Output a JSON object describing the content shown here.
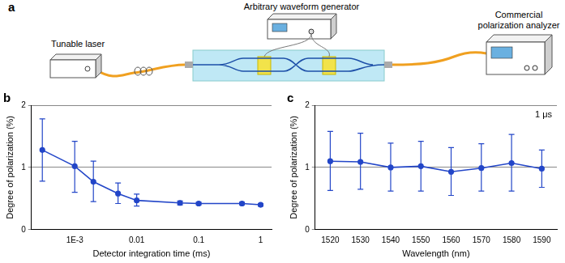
{
  "diagram": {
    "panel_label": "a",
    "nodes": [
      {
        "label": "Tunable laser"
      },
      {
        "label": "Arbitrary waveform generator"
      },
      {
        "label": "Commercial polarization analyzer"
      }
    ]
  },
  "chart_data": [
    {
      "type": "line",
      "panel_label": "b",
      "x_label": "Detector integration time (ms)",
      "y_label": "Degree of polarization (%)",
      "log": "x",
      "grid": true,
      "xlim": [
        0.0002,
        1.5
      ],
      "xticks": [
        {
          "value": 0.001,
          "label": "1E-3"
        },
        0.01,
        0.1,
        1
      ],
      "ylim": [
        0,
        2
      ],
      "yticks": [
        0,
        1,
        2
      ],
      "series": [
        {
          "name": "Degree of polarization",
          "color": "#2346c8",
          "marker": "circle",
          "line_style": "solid",
          "x": [
            0.0003,
            0.001,
            0.002,
            0.005,
            0.01,
            0.05,
            0.1,
            0.5,
            1
          ],
          "values": [
            1.28,
            1.02,
            0.77,
            0.58,
            0.47,
            0.43,
            0.42,
            0.42,
            0.4
          ],
          "error_low": [
            0.78,
            0.6,
            0.45,
            0.42,
            0.38,
            0.4,
            0.4,
            0.4,
            0.38
          ],
          "error_high": [
            1.78,
            1.42,
            1.1,
            0.75,
            0.57,
            0.46,
            0.44,
            0.44,
            0.42
          ]
        }
      ]
    },
    {
      "type": "line",
      "panel_label": "c",
      "x_label": "Wavelength (nm)",
      "y_label": "Degree of polarization (%)",
      "annotations": [
        "1 μs"
      ],
      "grid": true,
      "xlim": [
        1515,
        1595
      ],
      "xticks": [
        1520,
        1530,
        1540,
        1550,
        1560,
        1570,
        1580,
        1590
      ],
      "ylim": [
        0,
        2
      ],
      "yticks": [
        0,
        1,
        2
      ],
      "series": [
        {
          "name": "Degree of polarization",
          "color": "#2346c8",
          "marker": "circle",
          "line_style": "solid",
          "x": [
            1520,
            1530,
            1540,
            1550,
            1560,
            1570,
            1580,
            1590
          ],
          "values": [
            1.1,
            1.09,
            1.0,
            1.02,
            0.93,
            0.99,
            1.07,
            0.98
          ],
          "error_low": [
            0.63,
            0.65,
            0.62,
            0.62,
            0.55,
            0.62,
            0.62,
            0.68
          ],
          "error_high": [
            1.58,
            1.55,
            1.39,
            1.42,
            1.32,
            1.38,
            1.53,
            1.28
          ]
        }
      ]
    }
  ]
}
